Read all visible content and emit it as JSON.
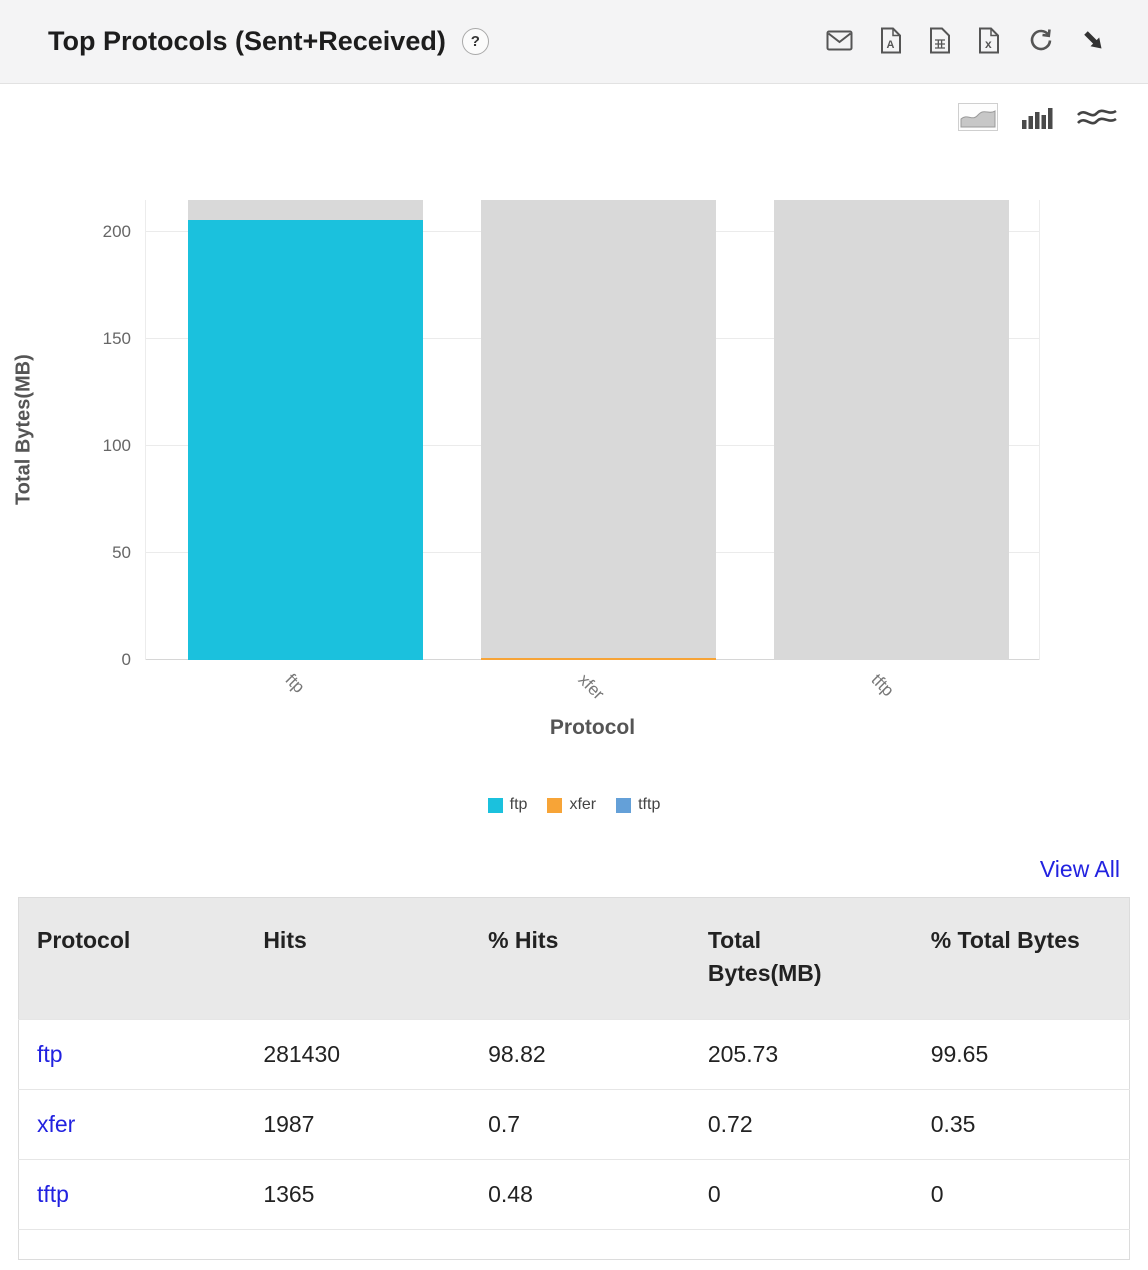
{
  "header": {
    "title": "Top Protocols (Sent+Received)",
    "help_label": "?"
  },
  "toolbar": {
    "icons": [
      "email-icon",
      "pdf-icon",
      "csv-icon",
      "excel-icon",
      "refresh-icon",
      "collapse-icon"
    ]
  },
  "chart_toolbar": {
    "icons": [
      "area-chart-icon",
      "bar-chart-icon",
      "stream-chart-icon"
    ]
  },
  "chart_data": {
    "type": "bar",
    "title": "Top Protocols (Sent+Received)",
    "xlabel": "Protocol",
    "ylabel": "Total Bytes(MB)",
    "ylim": [
      0,
      215
    ],
    "yticks": [
      0,
      50,
      100,
      150,
      200
    ],
    "grid": true,
    "legend_position": "bottom",
    "background_bar_value": 215,
    "categories": [
      "ftp",
      "xfer",
      "tftp"
    ],
    "series": [
      {
        "name": "ftp",
        "color": "#1bc1dd",
        "values": [
          205.73,
          0,
          0
        ]
      },
      {
        "name": "xfer",
        "color": "#f7a437",
        "values": [
          0,
          0.72,
          0
        ]
      },
      {
        "name": "tftp",
        "color": "#64a0d8",
        "values": [
          0,
          0,
          0
        ]
      }
    ]
  },
  "view_all": "View All",
  "table": {
    "columns": [
      "Protocol",
      "Hits",
      "% Hits",
      "Total Bytes(MB)",
      "% Total Bytes"
    ],
    "rows": [
      [
        "ftp",
        "281430",
        "98.82",
        "205.73",
        "99.65"
      ],
      [
        "xfer",
        "1987",
        "0.7",
        "0.72",
        "0.35"
      ],
      [
        "tftp",
        "1365",
        "0.48",
        "0",
        "0"
      ]
    ]
  },
  "colors": {
    "track_bar": "#d9d9d9",
    "link": "#2222e0",
    "header_bg": "#f4f4f5",
    "table_header_bg": "#e9e9e9"
  }
}
